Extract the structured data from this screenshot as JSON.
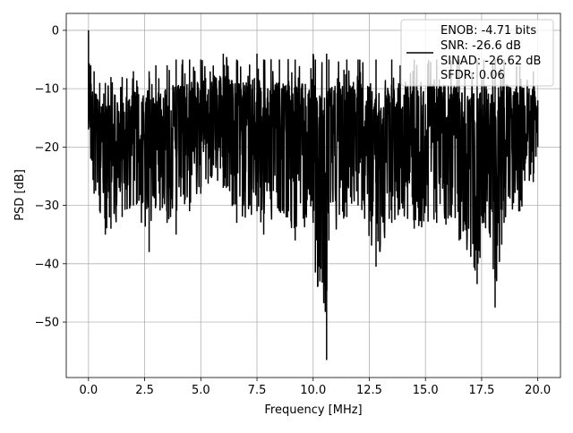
{
  "chart_data": {
    "type": "line",
    "title": "",
    "xlabel": "Frequency [MHz]",
    "ylabel": "PSD [dB]",
    "xlim": [
      -0.99,
      21.01
    ],
    "ylim": [
      -59.5,
      2.9
    ],
    "x_ticks": [
      0.0,
      2.5,
      5.0,
      7.5,
      10.0,
      12.5,
      15.0,
      17.5,
      20.0
    ],
    "x_tick_labels": [
      "0.0",
      "2.5",
      "5.0",
      "7.5",
      "10.0",
      "12.5",
      "15.0",
      "17.5",
      "20.0"
    ],
    "y_ticks": [
      0,
      -10,
      -20,
      -30,
      -40,
      -50
    ],
    "y_tick_labels": [
      "0",
      "−10",
      "−20",
      "−30",
      "−40",
      "−50"
    ],
    "grid": true,
    "legend_position": "top-right",
    "legend_lines": [
      "ENOB: -4.71 bits",
      "SNR: -26.6 dB",
      "SINAD: -26.62 dB",
      "SFDR: 0.06"
    ],
    "series": [
      {
        "name": "ENOB: -4.71 bits",
        "color": "#000000",
        "x_start": 0.0,
        "x_end": 20.0,
        "points_per_band": 14,
        "bands": [
          {
            "x": 0.0,
            "top": 0.0,
            "bottom": -17
          },
          {
            "x": 0.1,
            "top": -6,
            "bottom": -22
          },
          {
            "x": 0.25,
            "top": -7,
            "bottom": -28
          },
          {
            "x": 0.5,
            "top": -9,
            "bottom": -31
          },
          {
            "x": 0.75,
            "top": -9,
            "bottom": -35
          },
          {
            "x": 1.0,
            "top": -8,
            "bottom": -34
          },
          {
            "x": 1.5,
            "top": -8,
            "bottom": -32
          },
          {
            "x": 2.0,
            "top": -7,
            "bottom": -30
          },
          {
            "x": 2.7,
            "top": -7,
            "bottom": -38
          },
          {
            "x": 3.0,
            "top": -6,
            "bottom": -30
          },
          {
            "x": 3.5,
            "top": -6,
            "bottom": -33
          },
          {
            "x": 3.9,
            "top": -5,
            "bottom": -35
          },
          {
            "x": 4.5,
            "top": -5,
            "bottom": -31
          },
          {
            "x": 5.0,
            "top": -5,
            "bottom": -28
          },
          {
            "x": 6.0,
            "top": -4,
            "bottom": -27
          },
          {
            "x": 6.6,
            "top": -5,
            "bottom": -33
          },
          {
            "x": 7.5,
            "top": -4,
            "bottom": -31
          },
          {
            "x": 7.8,
            "top": -5,
            "bottom": -35
          },
          {
            "x": 8.5,
            "top": -5,
            "bottom": -31
          },
          {
            "x": 9.2,
            "top": -5,
            "bottom": -36
          },
          {
            "x": 10.0,
            "top": -4,
            "bottom": -33
          },
          {
            "x": 10.1,
            "top": -5,
            "bottom": -41.5
          },
          {
            "x": 10.6,
            "top": -4,
            "bottom": -56.5
          },
          {
            "x": 10.7,
            "top": -5,
            "bottom": -36
          },
          {
            "x": 11.5,
            "top": -5,
            "bottom": -32
          },
          {
            "x": 12.0,
            "top": -5,
            "bottom": -30
          },
          {
            "x": 12.8,
            "top": -5,
            "bottom": -40.5
          },
          {
            "x": 13.5,
            "top": -5,
            "bottom": -33
          },
          {
            "x": 14.5,
            "top": -5,
            "bottom": -34
          },
          {
            "x": 15.5,
            "top": -5,
            "bottom": -33
          },
          {
            "x": 16.5,
            "top": -5,
            "bottom": -36
          },
          {
            "x": 17.3,
            "top": -5,
            "bottom": -43.5
          },
          {
            "x": 17.6,
            "top": -5,
            "bottom": -33
          },
          {
            "x": 18.1,
            "top": -5,
            "bottom": -47.5
          },
          {
            "x": 18.5,
            "top": -5,
            "bottom": -33
          },
          {
            "x": 19.2,
            "top": -6,
            "bottom": -31
          },
          {
            "x": 19.8,
            "top": -7,
            "bottom": -26
          },
          {
            "x": 20.0,
            "top": -12,
            "bottom": -20
          }
        ]
      }
    ]
  }
}
